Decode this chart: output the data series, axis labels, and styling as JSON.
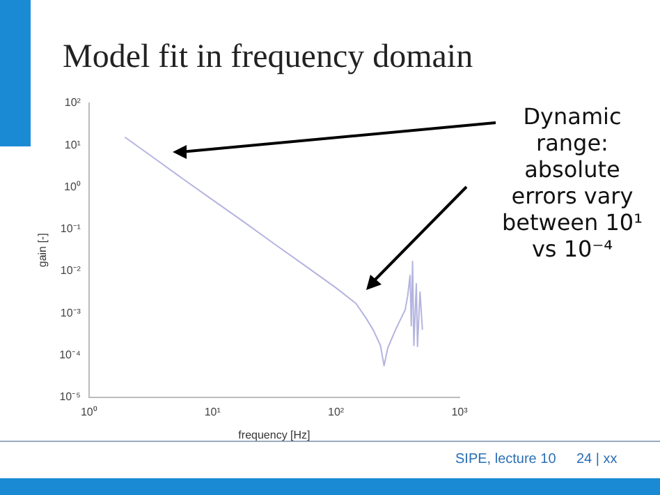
{
  "chart_data": {
    "type": "line",
    "title": "Model fit in frequency domain",
    "xlabel": "frequency [Hz]",
    "ylabel": "gain [-]",
    "annotations": [
      "Dynamic range: absolute errors vary between 10¹ vs 10⁻⁴",
      "SIPE, lecture 10",
      "24 | xx"
    ],
    "log": "xy",
    "grid": false,
    "legend": false,
    "marker": "none",
    "line_style": "solid",
    "xlim": [
      1,
      1000
    ],
    "xticks": [
      {
        "value": 1,
        "label": "10⁰"
      },
      {
        "value": 10,
        "label": "10¹"
      },
      {
        "value": 100,
        "label": "10²"
      },
      {
        "value": 1000,
        "label": "10³"
      }
    ],
    "ylim": [
      1e-05,
      100
    ],
    "yticks": [
      {
        "value": 1e-05,
        "label": "10⁻⁵"
      },
      {
        "value": 0.0001,
        "label": "10⁻⁴"
      },
      {
        "value": 0.001,
        "label": "10⁻³"
      },
      {
        "value": 0.01,
        "label": "10⁻²"
      },
      {
        "value": 0.1,
        "label": "10⁻¹"
      },
      {
        "value": 1,
        "label": "10⁰"
      },
      {
        "value": 10,
        "label": "10¹"
      },
      {
        "value": 100,
        "label": "10²"
      }
    ],
    "series": [
      {
        "color": "#b4b4e0",
        "x": [
          1.95,
          3.16,
          5.62,
          10,
          17.8,
          31.6,
          56.2,
          100,
          145,
          174,
          200,
          229,
          245,
          263,
          302,
          363,
          380,
          398,
          407,
          417,
          427,
          447,
          457,
          479,
          501
        ],
        "values": [
          15.5,
          5.62,
          1.66,
          0.5,
          0.151,
          0.0447,
          0.0135,
          0.004,
          0.0017,
          0.00078,
          0.0004,
          0.00017,
          5.6e-05,
          0.00015,
          0.00039,
          0.0012,
          0.0025,
          0.0079,
          0.0005,
          0.017,
          0.00017,
          0.005,
          0.00016,
          0.0032,
          0.0004
        ]
      }
    ]
  }
}
